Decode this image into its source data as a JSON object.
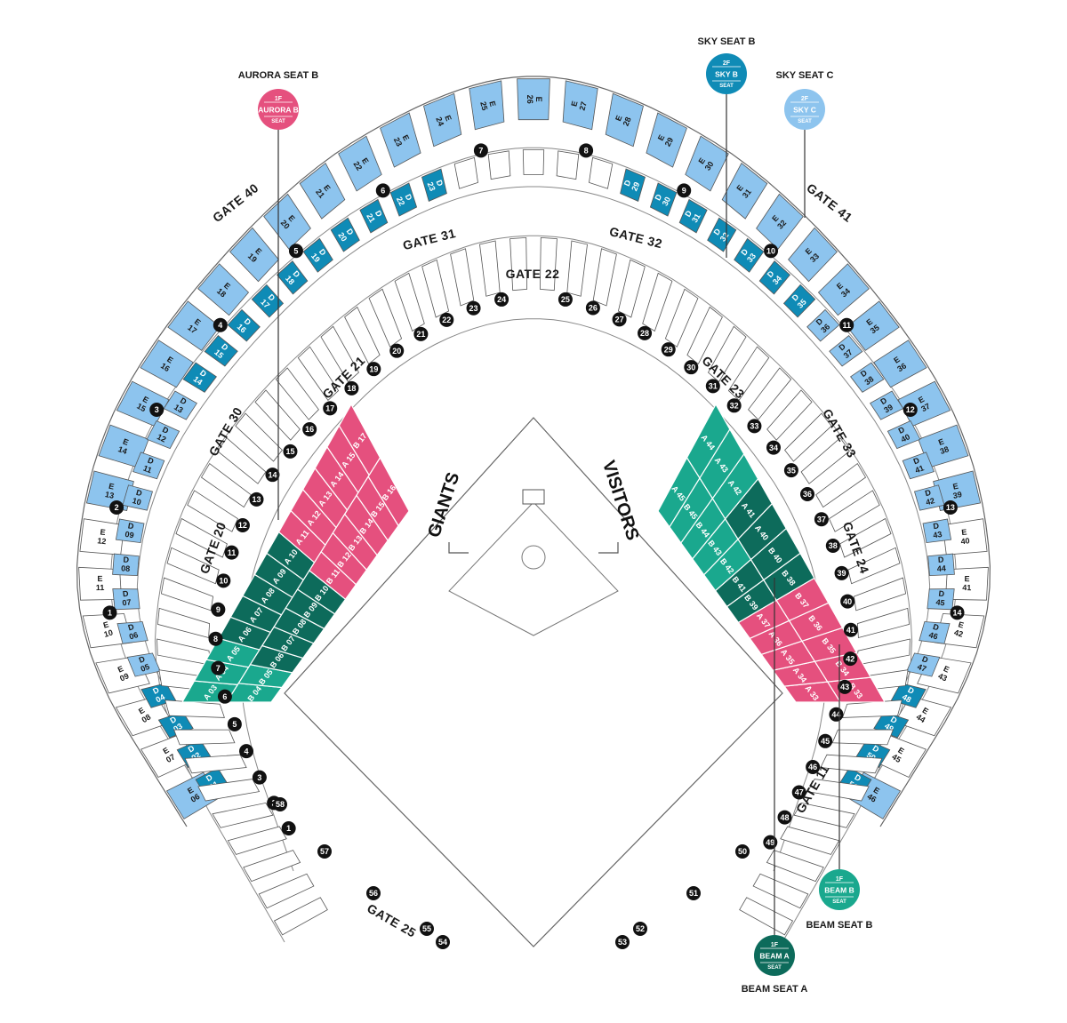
{
  "colors": {
    "sky_light": "#8dc4ee",
    "sky_dark": "#0f8bb6",
    "aurora": "#e5507e",
    "beam_dark": "#0d6b5b",
    "beam_light": "#1aa88e",
    "outline": "#555555",
    "marker": "#111111"
  },
  "teams": {
    "home": "GIANTS",
    "visitor": "VISITORS"
  },
  "gates": {
    "g40": "GATE 40",
    "g41": "GATE 41",
    "g31": "GATE 31",
    "g32": "GATE 32",
    "g22": "GATE 22",
    "g21": "GATE 21",
    "g23": "GATE 23",
    "g30": "GATE 30",
    "g33": "GATE 33",
    "g20": "GATE 20",
    "g24": "GATE 24",
    "g11": "GATE 11",
    "g25": "GATE 25"
  },
  "badges": [
    {
      "title": "AURORA SEAT B",
      "floor": "1F",
      "name": "AURORA B",
      "seat": "SEAT",
      "color": "#e5507e",
      "icon": "aurora-seat-b-badge-icon"
    },
    {
      "title": "SKY SEAT B",
      "floor": "2F",
      "name": "SKY B",
      "seat": "SEAT",
      "color": "#0f8bb6",
      "icon": "sky-seat-b-badge-icon"
    },
    {
      "title": "SKY SEAT C",
      "floor": "2F",
      "name": "SKY C",
      "seat": "SEAT",
      "color": "#8dc4ee",
      "icon": "sky-seat-c-badge-icon"
    },
    {
      "title": "BEAM SEAT B",
      "floor": "1F",
      "name": "BEAM B",
      "seat": "SEAT",
      "color": "#1aa88e",
      "icon": "beam-seat-b-badge-icon"
    },
    {
      "title": "BEAM SEAT A",
      "floor": "1F",
      "name": "BEAM A",
      "seat": "SEAT",
      "color": "#0d6b5b",
      "icon": "beam-seat-a-badge-icon"
    }
  ],
  "sections": {
    "e_upper": [
      {
        "row": "E",
        "num": "06",
        "color": "#8dc4ee"
      },
      {
        "row": "E",
        "num": "07",
        "color": "#ffffff"
      },
      {
        "row": "E",
        "num": "08",
        "color": "#ffffff"
      },
      {
        "row": "E",
        "num": "09",
        "color": "#ffffff"
      },
      {
        "row": "E",
        "num": "10",
        "color": "#ffffff"
      },
      {
        "row": "E",
        "num": "11",
        "color": "#ffffff"
      },
      {
        "row": "E",
        "num": "12",
        "color": "#ffffff"
      },
      {
        "row": "E",
        "num": "13",
        "color": "#8dc4ee"
      },
      {
        "row": "E",
        "num": "14",
        "color": "#8dc4ee"
      },
      {
        "row": "E",
        "num": "15",
        "color": "#8dc4ee"
      },
      {
        "row": "E",
        "num": "16",
        "color": "#8dc4ee"
      },
      {
        "row": "E",
        "num": "17",
        "color": "#8dc4ee"
      },
      {
        "row": "E",
        "num": "18",
        "color": "#8dc4ee"
      },
      {
        "row": "E",
        "num": "19",
        "color": "#8dc4ee"
      },
      {
        "row": "E",
        "num": "20",
        "color": "#8dc4ee"
      },
      {
        "row": "E",
        "num": "21",
        "color": "#8dc4ee"
      },
      {
        "row": "E",
        "num": "22",
        "color": "#8dc4ee"
      },
      {
        "row": "E",
        "num": "23",
        "color": "#8dc4ee"
      },
      {
        "row": "E",
        "num": "24",
        "color": "#8dc4ee"
      },
      {
        "row": "E",
        "num": "25",
        "color": "#8dc4ee"
      },
      {
        "row": "E",
        "num": "26",
        "color": "#8dc4ee"
      },
      {
        "row": "E",
        "num": "27",
        "color": "#8dc4ee"
      },
      {
        "row": "E",
        "num": "28",
        "color": "#8dc4ee"
      },
      {
        "row": "E",
        "num": "29",
        "color": "#8dc4ee"
      },
      {
        "row": "E",
        "num": "30",
        "color": "#8dc4ee"
      },
      {
        "row": "E",
        "num": "31",
        "color": "#8dc4ee"
      },
      {
        "row": "E",
        "num": "32",
        "color": "#8dc4ee"
      },
      {
        "row": "E",
        "num": "33",
        "color": "#8dc4ee"
      },
      {
        "row": "E",
        "num": "34",
        "color": "#8dc4ee"
      },
      {
        "row": "E",
        "num": "35",
        "color": "#8dc4ee"
      },
      {
        "row": "E",
        "num": "36",
        "color": "#8dc4ee"
      },
      {
        "row": "E",
        "num": "37",
        "color": "#8dc4ee"
      },
      {
        "row": "E",
        "num": "38",
        "color": "#8dc4ee"
      },
      {
        "row": "E",
        "num": "39",
        "color": "#8dc4ee"
      },
      {
        "row": "E",
        "num": "40",
        "color": "#ffffff"
      },
      {
        "row": "E",
        "num": "41",
        "color": "#ffffff"
      },
      {
        "row": "E",
        "num": "42",
        "color": "#ffffff"
      },
      {
        "row": "E",
        "num": "43",
        "color": "#ffffff"
      },
      {
        "row": "E",
        "num": "44",
        "color": "#ffffff"
      },
      {
        "row": "E",
        "num": "45",
        "color": "#ffffff"
      },
      {
        "row": "E",
        "num": "46",
        "color": "#8dc4ee"
      }
    ],
    "d_mid": [
      {
        "row": "D",
        "num": "01",
        "color": "#0f8bb6"
      },
      {
        "row": "D",
        "num": "02",
        "color": "#0f8bb6"
      },
      {
        "row": "D",
        "num": "03",
        "color": "#0f8bb6"
      },
      {
        "row": "D",
        "num": "04",
        "color": "#0f8bb6"
      },
      {
        "row": "D",
        "num": "05",
        "color": "#8dc4ee"
      },
      {
        "row": "D",
        "num": "06",
        "color": "#8dc4ee"
      },
      {
        "row": "D",
        "num": "07",
        "color": "#8dc4ee"
      },
      {
        "row": "D",
        "num": "08",
        "color": "#8dc4ee"
      },
      {
        "row": "D",
        "num": "09",
        "color": "#8dc4ee"
      },
      {
        "row": "D",
        "num": "10",
        "color": "#8dc4ee"
      },
      {
        "row": "D",
        "num": "11",
        "color": "#8dc4ee"
      },
      {
        "row": "D",
        "num": "12",
        "color": "#8dc4ee"
      },
      {
        "row": "D",
        "num": "13",
        "color": "#8dc4ee"
      },
      {
        "row": "D",
        "num": "14",
        "color": "#0f8bb6"
      },
      {
        "row": "D",
        "num": "15",
        "color": "#0f8bb6"
      },
      {
        "row": "D",
        "num": "16",
        "color": "#0f8bb6"
      },
      {
        "row": "D",
        "num": "17",
        "color": "#0f8bb6"
      },
      {
        "row": "D",
        "num": "18",
        "color": "#0f8bb6"
      },
      {
        "row": "D",
        "num": "19",
        "color": "#0f8bb6"
      },
      {
        "row": "D",
        "num": "20",
        "color": "#0f8bb6"
      },
      {
        "row": "D",
        "num": "21",
        "color": "#0f8bb6"
      },
      {
        "row": "D",
        "num": "22",
        "color": "#0f8bb6"
      },
      {
        "row": "D",
        "num": "23",
        "color": "#0f8bb6"
      },
      {
        "row": "",
        "num": "",
        "color": "#ffffff"
      },
      {
        "row": "",
        "num": "",
        "color": "#ffffff"
      },
      {
        "row": "",
        "num": "",
        "color": "#ffffff"
      },
      {
        "row": "",
        "num": "",
        "color": "#ffffff"
      },
      {
        "row": "",
        "num": "",
        "color": "#ffffff"
      },
      {
        "row": "D",
        "num": "29",
        "color": "#0f8bb6"
      },
      {
        "row": "D",
        "num": "30",
        "color": "#0f8bb6"
      },
      {
        "row": "D",
        "num": "31",
        "color": "#0f8bb6"
      },
      {
        "row": "D",
        "num": "32",
        "color": "#0f8bb6"
      },
      {
        "row": "D",
        "num": "33",
        "color": "#0f8bb6"
      },
      {
        "row": "D",
        "num": "34",
        "color": "#0f8bb6"
      },
      {
        "row": "D",
        "num": "35",
        "color": "#0f8bb6"
      },
      {
        "row": "D",
        "num": "36",
        "color": "#8dc4ee"
      },
      {
        "row": "D",
        "num": "37",
        "color": "#8dc4ee"
      },
      {
        "row": "D",
        "num": "38",
        "color": "#8dc4ee"
      },
      {
        "row": "D",
        "num": "39",
        "color": "#8dc4ee"
      },
      {
        "row": "D",
        "num": "40",
        "color": "#8dc4ee"
      },
      {
        "row": "D",
        "num": "41",
        "color": "#8dc4ee"
      },
      {
        "row": "D",
        "num": "42",
        "color": "#8dc4ee"
      },
      {
        "row": "D",
        "num": "43",
        "color": "#8dc4ee"
      },
      {
        "row": "D",
        "num": "44",
        "color": "#8dc4ee"
      },
      {
        "row": "D",
        "num": "45",
        "color": "#8dc4ee"
      },
      {
        "row": "D",
        "num": "46",
        "color": "#8dc4ee"
      },
      {
        "row": "D",
        "num": "47",
        "color": "#8dc4ee"
      },
      {
        "row": "D",
        "num": "48",
        "color": "#0f8bb6"
      },
      {
        "row": "D",
        "num": "49",
        "color": "#0f8bb6"
      },
      {
        "row": "D",
        "num": "50",
        "color": "#0f8bb6"
      },
      {
        "row": "D",
        "num": "51",
        "color": "#0f8bb6"
      }
    ],
    "field_left": [
      {
        "row": "A",
        "num": "03",
        "color": "#1aa88e"
      },
      {
        "row": "B",
        "num": "04",
        "color": "#1aa88e"
      },
      {
        "row": "A",
        "num": "04",
        "color": "#1aa88e"
      },
      {
        "row": "B",
        "num": "05",
        "color": "#1aa88e"
      },
      {
        "row": "A",
        "num": "05",
        "color": "#1aa88e"
      },
      {
        "row": "B",
        "num": "06",
        "color": "#0d6b5b"
      },
      {
        "row": "A",
        "num": "06",
        "color": "#0d6b5b"
      },
      {
        "row": "B",
        "num": "07",
        "color": "#0d6b5b"
      },
      {
        "row": "A",
        "num": "07",
        "color": "#0d6b5b"
      },
      {
        "row": "B",
        "num": "08",
        "color": "#0d6b5b"
      },
      {
        "row": "A",
        "num": "08",
        "color": "#0d6b5b"
      },
      {
        "row": "B",
        "num": "09",
        "color": "#0d6b5b"
      },
      {
        "row": "A",
        "num": "09",
        "color": "#0d6b5b"
      },
      {
        "row": "B",
        "num": "10",
        "color": "#0d6b5b"
      },
      {
        "row": "A",
        "num": "10",
        "color": "#0d6b5b"
      },
      {
        "row": "B",
        "num": "11",
        "color": "#e5507e"
      },
      {
        "row": "A",
        "num": "11",
        "color": "#e5507e"
      },
      {
        "row": "B",
        "num": "12",
        "color": "#e5507e"
      },
      {
        "row": "A",
        "num": "12",
        "color": "#e5507e"
      },
      {
        "row": "B",
        "num": "13",
        "color": "#e5507e"
      },
      {
        "row": "A",
        "num": "13",
        "color": "#e5507e"
      },
      {
        "row": "B",
        "num": "14",
        "color": "#e5507e"
      },
      {
        "row": "A",
        "num": "14",
        "color": "#e5507e"
      },
      {
        "row": "B",
        "num": "15",
        "color": "#e5507e"
      },
      {
        "row": "A",
        "num": "15",
        "color": "#e5507e"
      },
      {
        "row": "B",
        "num": "16",
        "color": "#e5507e"
      },
      {
        "row": "B",
        "num": "17",
        "color": "#e5507e"
      }
    ],
    "field_right": [
      {
        "row": "B",
        "num": "33",
        "color": "#e5507e"
      },
      {
        "row": "A",
        "num": "33",
        "color": "#e5507e"
      },
      {
        "row": "B",
        "num": "34",
        "color": "#e5507e"
      },
      {
        "row": "A",
        "num": "34",
        "color": "#e5507e"
      },
      {
        "row": "B",
        "num": "35",
        "color": "#e5507e"
      },
      {
        "row": "A",
        "num": "35",
        "color": "#e5507e"
      },
      {
        "row": "B",
        "num": "36",
        "color": "#e5507e"
      },
      {
        "row": "A",
        "num": "36",
        "color": "#e5507e"
      },
      {
        "row": "B",
        "num": "37",
        "color": "#e5507e"
      },
      {
        "row": "A",
        "num": "37",
        "color": "#e5507e"
      },
      {
        "row": "B",
        "num": "38",
        "color": "#0d6b5b"
      },
      {
        "row": "B",
        "num": "39",
        "color": "#0d6b5b"
      },
      {
        "row": "B",
        "num": "40",
        "color": "#0d6b5b"
      },
      {
        "row": "B",
        "num": "41",
        "color": "#0d6b5b"
      },
      {
        "row": "A",
        "num": "40",
        "color": "#0d6b5b"
      },
      {
        "row": "B",
        "num": "42",
        "color": "#1aa88e"
      },
      {
        "row": "A",
        "num": "41",
        "color": "#0d6b5b"
      },
      {
        "row": "B",
        "num": "43",
        "color": "#1aa88e"
      },
      {
        "row": "A",
        "num": "42",
        "color": "#1aa88e"
      },
      {
        "row": "B",
        "num": "44",
        "color": "#1aa88e"
      },
      {
        "row": "A",
        "num": "43",
        "color": "#1aa88e"
      },
      {
        "row": "B",
        "num": "45",
        "color": "#1aa88e"
      },
      {
        "row": "A",
        "num": "44",
        "color": "#1aa88e"
      },
      {
        "row": "A",
        "num": "45",
        "color": "#1aa88e"
      }
    ]
  },
  "markers": {
    "upper": [
      "1",
      "2",
      "3",
      "4",
      "5",
      "6",
      "7",
      "8",
      "9",
      "10",
      "11",
      "12",
      "13",
      "14"
    ],
    "inner_left": [
      "1",
      "2",
      "3",
      "4",
      "5",
      "6",
      "7",
      "8",
      "9",
      "10",
      "11",
      "12",
      "13",
      "14",
      "15",
      "16",
      "17",
      "18",
      "19",
      "20",
      "21",
      "22",
      "23",
      "24"
    ],
    "inner_right": [
      "25",
      "26",
      "27",
      "28",
      "29",
      "30",
      "31",
      "32",
      "33",
      "34",
      "35",
      "36",
      "37",
      "38",
      "39",
      "40",
      "41",
      "42",
      "43",
      "44",
      "45",
      "46",
      "47",
      "48",
      "49"
    ],
    "bottom": [
      "50",
      "51",
      "52",
      "53",
      "54",
      "55",
      "56",
      "57",
      "58"
    ]
  }
}
